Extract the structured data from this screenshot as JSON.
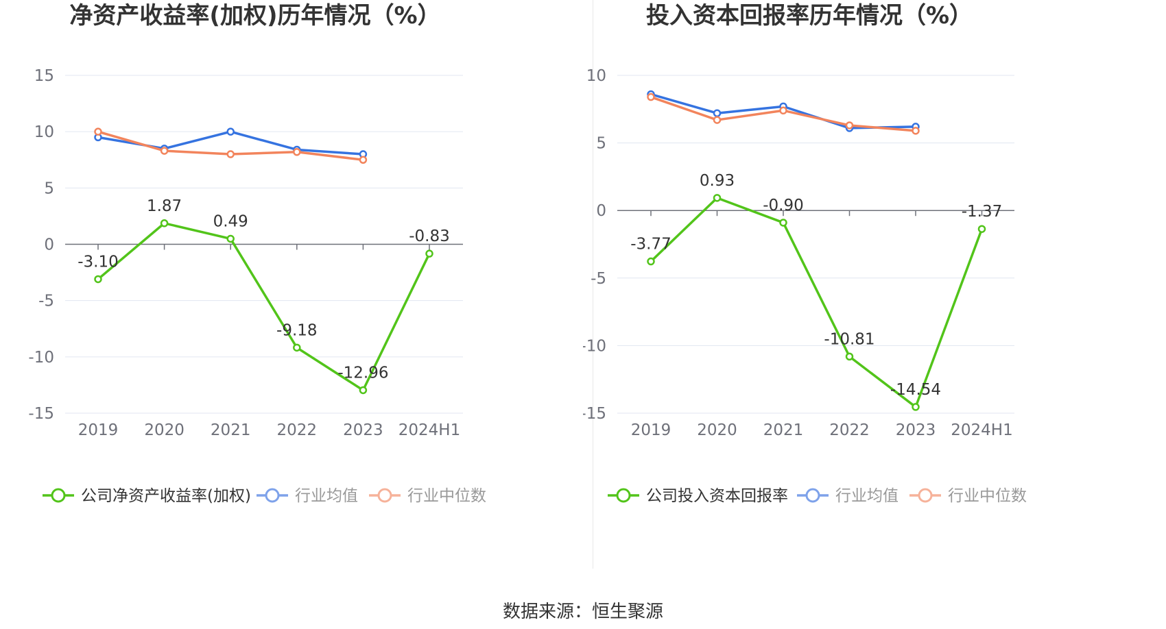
{
  "colors": {
    "company": "#52c41a",
    "avg": "#3573e0",
    "median": "#f2845c",
    "legend_avg": "#7ea2ea",
    "legend_median": "#f6b29a"
  },
  "chart_data": [
    {
      "type": "line",
      "title": "净资产收益率(加权)历年情况（%）",
      "categories": [
        "2019",
        "2020",
        "2021",
        "2022",
        "2023",
        "2024H1"
      ],
      "ylim": [
        -15,
        15
      ],
      "yticks": [
        15,
        10,
        5,
        0,
        -5,
        -10,
        -15
      ],
      "grid": true,
      "legend_position": "bottom",
      "series": [
        {
          "name": "公司净资产收益率(加权)",
          "key": "company",
          "values": [
            -3.1,
            1.87,
            0.49,
            -9.18,
            -12.96,
            -0.83
          ],
          "labels": [
            "-3.10",
            "1.87",
            "0.49",
            "-9.18",
            "-12.96",
            "-0.83"
          ]
        },
        {
          "name": "行业均值",
          "key": "avg",
          "values": [
            9.5,
            8.5,
            10.0,
            8.4,
            8.0,
            null
          ]
        },
        {
          "name": "行业中位数",
          "key": "median",
          "values": [
            10.0,
            8.3,
            8.0,
            8.2,
            7.5,
            null
          ]
        }
      ]
    },
    {
      "type": "line",
      "title": "投入资本回报率历年情况（%）",
      "categories": [
        "2019",
        "2020",
        "2021",
        "2022",
        "2023",
        "2024H1"
      ],
      "ylim": [
        -15,
        10
      ],
      "yticks": [
        10,
        5,
        0,
        -5,
        -10,
        -15
      ],
      "grid": true,
      "legend_position": "bottom",
      "series": [
        {
          "name": "公司投入资本回报率",
          "key": "company",
          "values": [
            -3.77,
            0.93,
            -0.9,
            -10.81,
            -14.54,
            -1.37
          ],
          "labels": [
            "-3.77",
            "0.93",
            "-0.90",
            "-10.81",
            "-14.54",
            "-1.37"
          ]
        },
        {
          "name": "行业均值",
          "key": "avg",
          "values": [
            8.6,
            7.2,
            7.7,
            6.1,
            6.2,
            null
          ]
        },
        {
          "name": "行业中位数",
          "key": "median",
          "values": [
            8.4,
            6.7,
            7.4,
            6.3,
            5.9,
            null
          ]
        }
      ]
    }
  ],
  "footer": {
    "source": "数据来源：恒生聚源"
  }
}
